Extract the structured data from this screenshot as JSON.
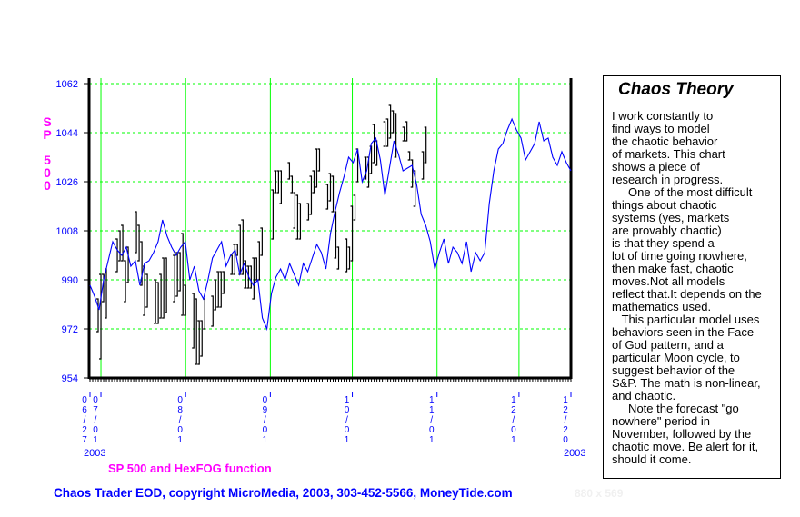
{
  "chart_data": {
    "type": "line",
    "title": "Chaos Theory",
    "ylabel": "SP 500",
    "legend": "SP 500 and HexFOG function",
    "ylim": [
      954,
      1062
    ],
    "yticks": [
      954,
      972,
      990,
      1008,
      1026,
      1044,
      1062
    ],
    "x_unit": "calendar days since 2003-06-27",
    "xlim": [
      0,
      176
    ],
    "xticks": [
      {
        "day": 0,
        "label": [
          "0",
          "6",
          "/",
          "2",
          "7"
        ]
      },
      {
        "day": 4,
        "label": [
          "0",
          "7",
          "/",
          "0",
          "1"
        ]
      },
      {
        "day": 35,
        "label": [
          "0",
          "8",
          "/",
          "0",
          "1"
        ]
      },
      {
        "day": 66,
        "label": [
          "0",
          "9",
          "/",
          "0",
          "1"
        ]
      },
      {
        "day": 96,
        "label": [
          "1",
          "0",
          "/",
          "0",
          "1"
        ]
      },
      {
        "day": 127,
        "label": [
          "1",
          "1",
          "/",
          "0",
          "1"
        ]
      },
      {
        "day": 157,
        "label": [
          "1",
          "2",
          "/",
          "0",
          "1"
        ]
      },
      {
        "day": 176,
        "label": [
          "1",
          "2",
          "/",
          "2",
          "0"
        ]
      }
    ],
    "year_start": "2003",
    "year_end": "2003",
    "grid": true,
    "series": [
      {
        "name": "SP 500",
        "type": "hl-bars",
        "color": "#000000",
        "bars": [
          [
            3,
            983,
            971
          ],
          [
            4,
            992,
            961
          ],
          [
            5,
            992,
            982
          ],
          [
            6,
            994,
            976
          ],
          [
            10,
            1005,
            993
          ],
          [
            11,
            1008,
            997
          ],
          [
            12,
            1010,
            997
          ],
          [
            13,
            997,
            982
          ],
          [
            14,
            1002,
            989
          ],
          [
            17,
            1015,
            1000
          ],
          [
            18,
            1010,
            997
          ],
          [
            19,
            1004,
            988
          ],
          [
            20,
            995,
            977
          ],
          [
            21,
            992,
            980
          ],
          [
            24,
            990,
            974
          ],
          [
            25,
            989,
            974
          ],
          [
            26,
            992,
            976
          ],
          [
            27,
            998,
            976
          ],
          [
            28,
            998,
            978
          ],
          [
            31,
            999,
            982
          ],
          [
            32,
            1000,
            984
          ],
          [
            33,
            1000,
            986
          ],
          [
            34,
            1007,
            977
          ],
          [
            35,
            988,
            977
          ],
          [
            38,
            985,
            965
          ],
          [
            39,
            983,
            959
          ],
          [
            40,
            975,
            959
          ],
          [
            41,
            975,
            962
          ],
          [
            42,
            983,
            972
          ],
          [
            45,
            984,
            973
          ],
          [
            46,
            990,
            979
          ],
          [
            47,
            993,
            980
          ],
          [
            48,
            993,
            980
          ],
          [
            49,
            993,
            985
          ],
          [
            52,
            999,
            992
          ],
          [
            53,
            1003,
            992
          ],
          [
            54,
            1003,
            999
          ],
          [
            55,
            1010,
            992
          ],
          [
            56,
            1012,
            992
          ],
          [
            57,
            997,
            987
          ],
          [
            58,
            995,
            987
          ],
          [
            59,
            995,
            987
          ],
          [
            60,
            998,
            983
          ],
          [
            61,
            998,
            990
          ],
          [
            62,
            1004,
            990
          ],
          [
            63,
            1009,
            999
          ],
          [
            67,
            1023,
            1005
          ],
          [
            68,
            1030,
            1022
          ],
          [
            69,
            1030,
            1022
          ],
          [
            70,
            1030,
            1018
          ],
          [
            73,
            1033,
            1027
          ],
          [
            74,
            1028,
            1022
          ],
          [
            75,
            1022,
            1009
          ],
          [
            76,
            1021,
            1005
          ],
          [
            77,
            1018,
            1005
          ],
          [
            80,
            1018,
            1012
          ],
          [
            81,
            1028,
            1014
          ],
          [
            82,
            1030,
            1022
          ],
          [
            83,
            1038,
            1024
          ],
          [
            84,
            1038,
            1030
          ],
          [
            87,
            1025,
            1016
          ],
          [
            88,
            1029,
            1019
          ],
          [
            89,
            1028,
            1015
          ],
          [
            90,
            1015,
            998
          ],
          [
            91,
            1002,
            994
          ],
          [
            94,
            1005,
            993
          ],
          [
            95,
            1002,
            994
          ],
          [
            96,
            1017,
            997
          ],
          [
            97,
            1021,
            1012
          ],
          [
            98,
            1038,
            1026
          ],
          [
            101,
            1035,
            1027
          ],
          [
            102,
            1035,
            1024
          ],
          [
            103,
            1039,
            1029
          ],
          [
            104,
            1047,
            1033
          ],
          [
            105,
            1041,
            1032
          ],
          [
            108,
            1048,
            1039
          ],
          [
            109,
            1049,
            1039
          ],
          [
            110,
            1054,
            1042
          ],
          [
            111,
            1052,
            1044
          ],
          [
            112,
            1051,
            1035
          ],
          [
            115,
            1046,
            1041
          ],
          [
            116,
            1048,
            1041
          ],
          [
            117,
            1037,
            1034
          ],
          [
            118,
            1034,
            1024
          ],
          [
            119,
            1030,
            1017
          ],
          [
            122,
            1037,
            1027
          ],
          [
            123,
            1046,
            1033
          ]
        ]
      },
      {
        "name": "HexFOG function",
        "type": "line",
        "color": "#0000ff",
        "start_day": 0,
        "end_day": 176,
        "values": [
          988,
          984,
          979,
          990,
          997,
          1004,
          1001,
          999,
          1002,
          995,
          997,
          988,
          996,
          997,
          1000,
          1004,
          1012,
          1006,
          1002,
          999,
          1002,
          1004,
          990,
          995,
          986,
          983,
          990,
          998,
          1001,
          1004,
          995,
          999,
          1001,
          992,
          996,
          991,
          988,
          990,
          976,
          972,
          985,
          991,
          994,
          990,
          996,
          992,
          988,
          996,
          993,
          998,
          1003,
          1000,
          994,
          1007,
          1015,
          1022,
          1028,
          1035,
          1033,
          1038,
          1026,
          1030,
          1040,
          1042,
          1034,
          1021,
          1031,
          1041,
          1036,
          1030,
          1031,
          1032,
          1025,
          1014,
          1010,
          1004,
          994,
          1000,
          1005,
          996,
          1002,
          1000,
          996,
          1004,
          993,
          1000,
          997,
          1000,
          1018,
          1030,
          1038,
          1040,
          1045,
          1049,
          1045,
          1042,
          1034,
          1037,
          1040,
          1048,
          1041,
          1042,
          1035,
          1032,
          1037,
          1033,
          1030
        ]
      }
    ]
  },
  "panel": {
    "title": "Chaos Theory",
    "lines": [
      "I work constantly to",
      "find ways to model",
      "the chaotic behavior",
      "of markets. This chart",
      "shows a piece of",
      "research in progress.",
      "     One of the most difficult",
      "things about chaotic",
      "systems (yes, markets",
      "are provably chaotic)",
      "is that they spend a",
      "lot of time going nowhere,",
      "then make fast, chaotic",
      "moves.Not all models",
      "reflect that.It depends on the",
      "mathematics used.",
      "   This particular model uses",
      "behaviors seen in the Face",
      "of God pattern, and a",
      "particular Moon cycle, to",
      "suggest behavior of the",
      "S&P. The math is non-linear,",
      "and chaotic.",
      "     Note the forecast \"go",
      "nowhere\" period in",
      "November, followed by the",
      "chaotic move. Be alert for it,",
      "should it come."
    ]
  },
  "ylabel_letters": [
    "S",
    "P",
    " ",
    "5",
    "0",
    "0"
  ],
  "legend_text": "SP 500 and HexFOG function",
  "footer": "Chaos Trader EOD, copyright MicroMedia, 2003, 303-452-5566, MoneyTide.com",
  "dimensions_text": "880 x 569",
  "colors": {
    "grid": "#00ff00",
    "axis_text": "#0000ff",
    "label": "#ff00ff",
    "bars": "#000000",
    "line": "#0000ff"
  }
}
